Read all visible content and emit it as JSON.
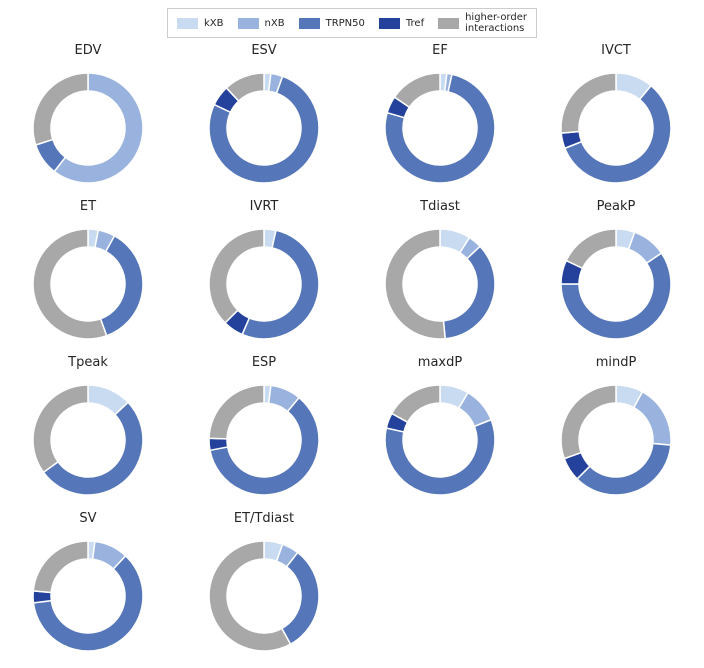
{
  "figure": {
    "background_color": "#ffffff",
    "text_color": "#262626"
  },
  "chart_data": {
    "type": "pie",
    "subtype": "donut",
    "legend_position": "top",
    "legend_entries": [
      {
        "label": "kXB",
        "color": "#c8dbf0"
      },
      {
        "label": "nXB",
        "color": "#9ab3de"
      },
      {
        "label": "TRPN50",
        "color": "#5577b9"
      },
      {
        "label": "Tref",
        "color": "#24429b"
      },
      {
        "label": "higher-order\ninteractions",
        "color": "#a8a8a8"
      }
    ],
    "slice_order": [
      "kXB",
      "nXB",
      "TRPN50",
      "Tref",
      "higher-order interactions"
    ],
    "colors": [
      "#c8dbf0",
      "#9ab3de",
      "#5577b9",
      "#24429b",
      "#a8a8a8"
    ],
    "values_unit": "percent",
    "start_angle_deg": 0,
    "direction": "clockwise",
    "donut_geometry": {
      "outer_radius": 55,
      "inner_radius": 37
    },
    "charts": [
      {
        "title": "EDV",
        "values": [
          0,
          60.5,
          9.5,
          0,
          30
        ]
      },
      {
        "title": "ESV",
        "values": [
          2,
          3.5,
          76.5,
          6,
          12
        ]
      },
      {
        "title": "EF",
        "values": [
          2,
          1.5,
          76,
          5,
          15.5
        ]
      },
      {
        "title": "IVCT",
        "values": [
          11,
          0,
          58,
          4.5,
          26.5
        ]
      },
      {
        "title": "ET",
        "values": [
          3,
          5,
          36.5,
          0,
          55.5
        ]
      },
      {
        "title": "IVRT",
        "values": [
          3.5,
          0,
          53,
          6,
          37.5
        ]
      },
      {
        "title": "Tdiast",
        "values": [
          9,
          4,
          35.5,
          0,
          51.5
        ]
      },
      {
        "title": "PeakP",
        "values": [
          5.5,
          10,
          59.5,
          7,
          18
        ]
      },
      {
        "title": "Tpeak",
        "values": [
          13,
          0,
          52,
          0,
          35
        ]
      },
      {
        "title": "ESP",
        "values": [
          2,
          9,
          61,
          3.5,
          24.5
        ]
      },
      {
        "title": "maxdP",
        "values": [
          8.5,
          10.5,
          59.5,
          4.5,
          17
        ]
      },
      {
        "title": "mindP",
        "values": [
          8,
          18.5,
          36,
          7,
          30.5
        ]
      },
      {
        "title": "SV",
        "values": [
          2,
          10,
          61,
          3.5,
          23.5
        ]
      },
      {
        "title": "ET/Tdiast",
        "values": [
          5.5,
          5,
          31.5,
          0,
          58
        ]
      }
    ]
  }
}
